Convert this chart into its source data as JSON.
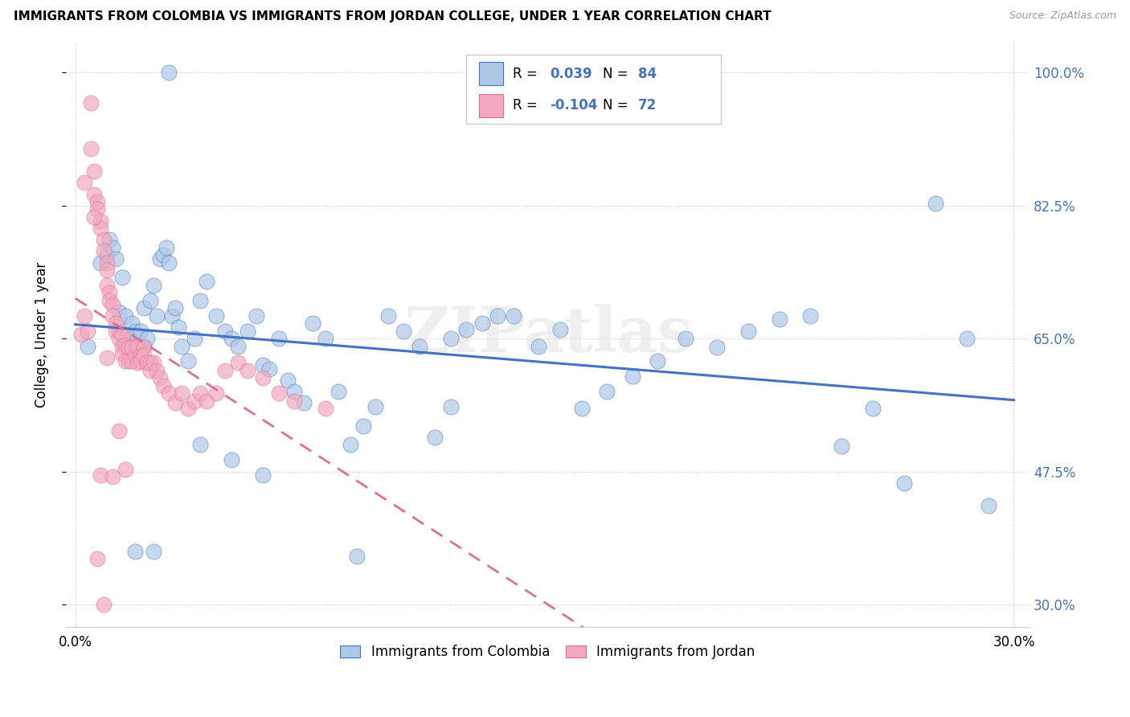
{
  "title": "IMMIGRANTS FROM COLOMBIA VS IMMIGRANTS FROM JORDAN COLLEGE, UNDER 1 YEAR CORRELATION CHART",
  "source": "Source: ZipAtlas.com",
  "ylabel": "College, Under 1 year",
  "xlim": [
    -0.003,
    0.305
  ],
  "ylim": [
    0.27,
    1.04
  ],
  "yticks": [
    0.3,
    0.475,
    0.65,
    0.825,
    1.0
  ],
  "ytick_labels": [
    "30.0%",
    "47.5%",
    "65.0%",
    "82.5%",
    "100.0%"
  ],
  "xtick_positions": [
    0.0,
    0.3
  ],
  "xtick_labels": [
    "0.0%",
    "30.0%"
  ],
  "R_colombia": 0.039,
  "N_colombia": 84,
  "R_jordan": -0.104,
  "N_jordan": 72,
  "color_colombia": "#aec8e8",
  "color_jordan": "#f2a8be",
  "line_color_colombia": "#4472c4",
  "line_color_jordan": "#e07090",
  "watermark": "ZIPatlas",
  "legend_labels": [
    "Immigrants from Colombia",
    "Immigrants from Jordan"
  ],
  "colombia_x": [
    0.004,
    0.008,
    0.01,
    0.011,
    0.012,
    0.013,
    0.014,
    0.015,
    0.016,
    0.017,
    0.018,
    0.019,
    0.02,
    0.021,
    0.022,
    0.022,
    0.023,
    0.024,
    0.025,
    0.026,
    0.027,
    0.028,
    0.029,
    0.03,
    0.031,
    0.032,
    0.033,
    0.034,
    0.036,
    0.038,
    0.04,
    0.042,
    0.045,
    0.048,
    0.05,
    0.052,
    0.055,
    0.058,
    0.06,
    0.062,
    0.065,
    0.068,
    0.07,
    0.073,
    0.076,
    0.08,
    0.084,
    0.088,
    0.092,
    0.096,
    0.1,
    0.105,
    0.11,
    0.115,
    0.12,
    0.125,
    0.13,
    0.135,
    0.14,
    0.148,
    0.155,
    0.162,
    0.17,
    0.178,
    0.186,
    0.195,
    0.205,
    0.215,
    0.225,
    0.235,
    0.245,
    0.255,
    0.265,
    0.275,
    0.285,
    0.292,
    0.019,
    0.025,
    0.03,
    0.04,
    0.05,
    0.06,
    0.09,
    0.12
  ],
  "colombia_y": [
    0.64,
    0.75,
    0.76,
    0.78,
    0.77,
    0.755,
    0.685,
    0.73,
    0.68,
    0.65,
    0.67,
    0.66,
    0.64,
    0.66,
    0.64,
    0.69,
    0.65,
    0.7,
    0.72,
    0.68,
    0.755,
    0.76,
    0.77,
    0.75,
    0.68,
    0.69,
    0.665,
    0.64,
    0.62,
    0.65,
    0.7,
    0.725,
    0.68,
    0.66,
    0.65,
    0.64,
    0.66,
    0.68,
    0.615,
    0.61,
    0.65,
    0.595,
    0.58,
    0.565,
    0.67,
    0.65,
    0.58,
    0.51,
    0.535,
    0.56,
    0.68,
    0.66,
    0.64,
    0.52,
    0.65,
    0.662,
    0.67,
    0.68,
    0.68,
    0.64,
    0.662,
    0.558,
    0.58,
    0.6,
    0.62,
    0.65,
    0.638,
    0.66,
    0.675,
    0.68,
    0.508,
    0.558,
    0.46,
    0.828,
    0.65,
    0.43,
    0.37,
    0.37,
    1.0,
    0.51,
    0.49,
    0.47,
    0.363,
    0.56
  ],
  "jordan_x": [
    0.002,
    0.003,
    0.004,
    0.005,
    0.006,
    0.006,
    0.007,
    0.007,
    0.008,
    0.008,
    0.009,
    0.009,
    0.01,
    0.01,
    0.01,
    0.011,
    0.011,
    0.012,
    0.012,
    0.013,
    0.013,
    0.014,
    0.014,
    0.015,
    0.015,
    0.015,
    0.016,
    0.016,
    0.017,
    0.017,
    0.018,
    0.018,
    0.019,
    0.02,
    0.02,
    0.021,
    0.021,
    0.022,
    0.022,
    0.023,
    0.023,
    0.024,
    0.024,
    0.025,
    0.026,
    0.027,
    0.028,
    0.03,
    0.032,
    0.034,
    0.036,
    0.038,
    0.04,
    0.042,
    0.045,
    0.048,
    0.052,
    0.055,
    0.06,
    0.065,
    0.07,
    0.08,
    0.003,
    0.005,
    0.006,
    0.007,
    0.008,
    0.009,
    0.01,
    0.012,
    0.014,
    0.016
  ],
  "jordan_y": [
    0.655,
    0.68,
    0.66,
    0.9,
    0.87,
    0.84,
    0.83,
    0.82,
    0.805,
    0.795,
    0.78,
    0.765,
    0.75,
    0.74,
    0.72,
    0.71,
    0.7,
    0.695,
    0.68,
    0.67,
    0.66,
    0.66,
    0.65,
    0.655,
    0.64,
    0.63,
    0.642,
    0.62,
    0.638,
    0.62,
    0.638,
    0.62,
    0.628,
    0.64,
    0.618,
    0.628,
    0.62,
    0.638,
    0.628,
    0.618,
    0.618,
    0.618,
    0.608,
    0.618,
    0.608,
    0.598,
    0.588,
    0.578,
    0.565,
    0.578,
    0.558,
    0.568,
    0.578,
    0.568,
    0.578,
    0.608,
    0.618,
    0.608,
    0.598,
    0.578,
    0.568,
    0.558,
    0.855,
    0.96,
    0.81,
    0.36,
    0.47,
    0.3,
    0.625,
    0.468,
    0.528,
    0.478
  ]
}
